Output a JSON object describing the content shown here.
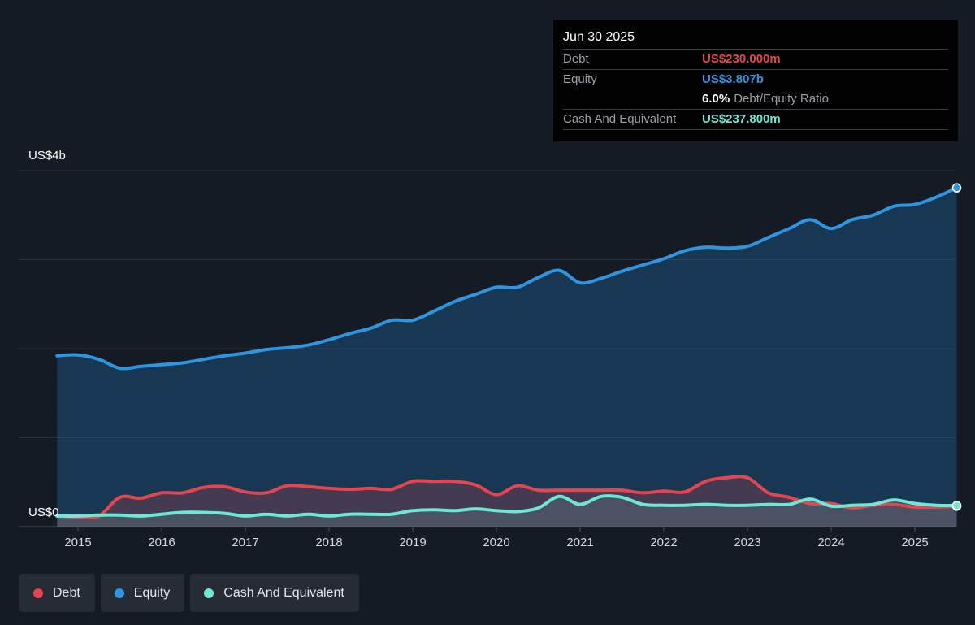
{
  "tooltip": {
    "date": "Jun 30 2025",
    "debt_label": "Debt",
    "debt_value": "US$230.000m",
    "equity_label": "Equity",
    "equity_value": "US$3.807b",
    "ratio_value": "6.0%",
    "ratio_label": "Debt/Equity Ratio",
    "cash_label": "Cash And Equivalent",
    "cash_value": "US$237.800m"
  },
  "y_top_label": "US$4b",
  "y_bottom_label": "US$0",
  "legend": [
    {
      "label": "Debt",
      "color": "#e2474f"
    },
    {
      "label": "Equity",
      "color": "#2f95e0"
    },
    {
      "label": "Cash And Equivalent",
      "color": "#6ee7d3"
    }
  ],
  "chart_data": {
    "type": "line",
    "ylim": [
      0,
      4
    ],
    "xlim": [
      2014.5,
      2025.7
    ],
    "xticks": [
      2015,
      2016,
      2017,
      2018,
      2019,
      2020,
      2021,
      2022,
      2023,
      2024,
      2025
    ],
    "series": [
      {
        "name": "Equity",
        "color": "#2f95e0",
        "area": true,
        "x": [
          2014.75,
          2015.0,
          2015.25,
          2015.5,
          2015.75,
          2016.0,
          2016.25,
          2016.5,
          2016.75,
          2017.0,
          2017.25,
          2017.5,
          2017.75,
          2018.0,
          2018.25,
          2018.5,
          2018.75,
          2019.0,
          2019.25,
          2019.5,
          2019.75,
          2020.0,
          2020.25,
          2020.5,
          2020.75,
          2021.0,
          2021.25,
          2021.5,
          2021.75,
          2022.0,
          2022.25,
          2022.5,
          2022.75,
          2023.0,
          2023.25,
          2023.5,
          2023.75,
          2024.0,
          2024.25,
          2024.5,
          2024.75,
          2025.0,
          2025.25,
          2025.5
        ],
        "values": [
          1.92,
          1.93,
          1.88,
          1.78,
          1.8,
          1.82,
          1.84,
          1.88,
          1.92,
          1.95,
          1.99,
          2.01,
          2.04,
          2.1,
          2.17,
          2.23,
          2.32,
          2.32,
          2.42,
          2.53,
          2.61,
          2.69,
          2.69,
          2.8,
          2.88,
          2.74,
          2.79,
          2.87,
          2.94,
          3.01,
          3.1,
          3.14,
          3.13,
          3.15,
          3.25,
          3.35,
          3.45,
          3.35,
          3.45,
          3.5,
          3.6,
          3.62,
          3.7,
          3.807
        ]
      },
      {
        "name": "Debt",
        "color": "#e2474f",
        "area": true,
        "x": [
          2014.75,
          2015.0,
          2015.25,
          2015.5,
          2015.75,
          2016.0,
          2016.25,
          2016.5,
          2016.75,
          2017.0,
          2017.25,
          2017.5,
          2017.75,
          2018.0,
          2018.25,
          2018.5,
          2018.75,
          2019.0,
          2019.25,
          2019.5,
          2019.75,
          2020.0,
          2020.25,
          2020.5,
          2020.75,
          2021.0,
          2021.25,
          2021.5,
          2021.75,
          2022.0,
          2022.25,
          2022.5,
          2022.75,
          2023.0,
          2023.25,
          2023.5,
          2023.75,
          2024.0,
          2024.25,
          2024.5,
          2024.75,
          2025.0,
          2025.25,
          2025.5
        ],
        "values": [
          0.12,
          0.11,
          0.12,
          0.33,
          0.32,
          0.38,
          0.38,
          0.44,
          0.45,
          0.39,
          0.38,
          0.46,
          0.45,
          0.43,
          0.42,
          0.43,
          0.42,
          0.51,
          0.51,
          0.51,
          0.47,
          0.36,
          0.46,
          0.41,
          0.41,
          0.41,
          0.41,
          0.41,
          0.38,
          0.4,
          0.39,
          0.51,
          0.55,
          0.55,
          0.38,
          0.33,
          0.26,
          0.26,
          0.21,
          0.24,
          0.25,
          0.22,
          0.22,
          0.23
        ]
      },
      {
        "name": "Cash And Equivalent",
        "color": "#6ee7d3",
        "area": true,
        "x": [
          2014.75,
          2015.0,
          2015.25,
          2015.5,
          2015.75,
          2016.0,
          2016.25,
          2016.5,
          2016.75,
          2017.0,
          2017.25,
          2017.5,
          2017.75,
          2018.0,
          2018.25,
          2018.5,
          2018.75,
          2019.0,
          2019.25,
          2019.5,
          2019.75,
          2020.0,
          2020.25,
          2020.5,
          2020.75,
          2021.0,
          2021.25,
          2021.5,
          2021.75,
          2022.0,
          2022.25,
          2022.5,
          2022.75,
          2023.0,
          2023.25,
          2023.5,
          2023.75,
          2024.0,
          2024.25,
          2024.5,
          2024.75,
          2025.0,
          2025.25,
          2025.5
        ],
        "values": [
          0.12,
          0.12,
          0.13,
          0.13,
          0.12,
          0.14,
          0.16,
          0.16,
          0.15,
          0.12,
          0.14,
          0.12,
          0.14,
          0.12,
          0.14,
          0.14,
          0.14,
          0.18,
          0.19,
          0.18,
          0.2,
          0.18,
          0.17,
          0.21,
          0.34,
          0.25,
          0.34,
          0.33,
          0.25,
          0.24,
          0.24,
          0.25,
          0.24,
          0.24,
          0.25,
          0.25,
          0.31,
          0.23,
          0.24,
          0.25,
          0.3,
          0.26,
          0.24,
          0.2378
        ]
      }
    ]
  }
}
